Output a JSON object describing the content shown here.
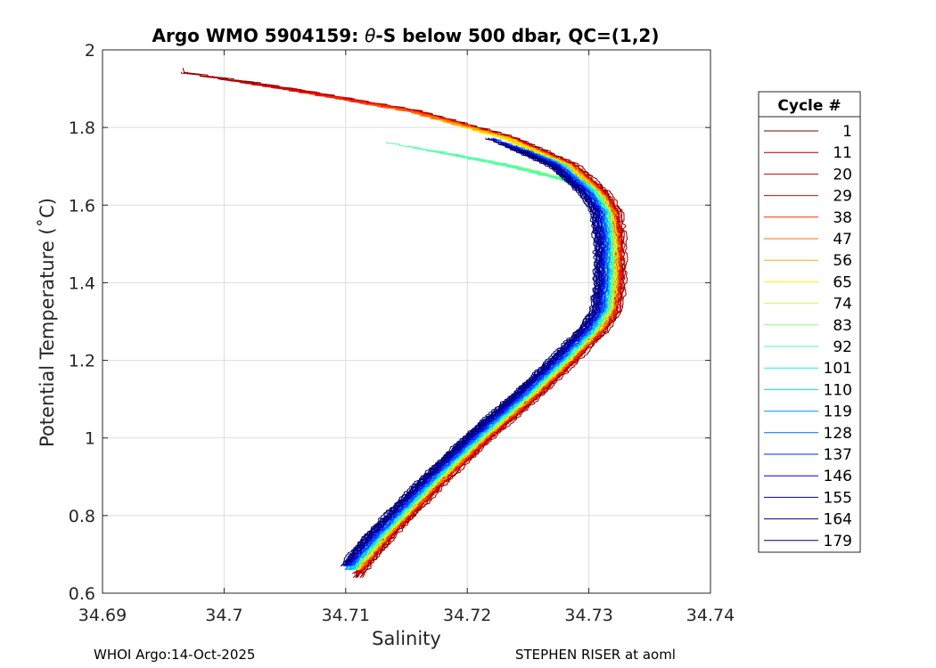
{
  "chart_data": {
    "type": "line",
    "title": {
      "prefix": "Argo WMO 5904159: ",
      "theta": "θ",
      "suffix": "-S below 500 dbar,  QC=(1,2)"
    },
    "xlabel": "Salinity",
    "ylabel": "Potential Temperature (˚C)",
    "xlim": [
      34.69,
      34.74
    ],
    "ylim": [
      0.6,
      2.0
    ],
    "xticks": [
      34.69,
      34.7,
      34.71,
      34.72,
      34.73,
      34.74
    ],
    "xtick_labels": [
      "34.69",
      "34.7",
      "34.71",
      "34.72",
      "34.73",
      "34.74"
    ],
    "yticks": [
      0.6,
      0.8,
      1.0,
      1.2,
      1.4,
      1.6,
      1.8,
      2.0
    ],
    "ytick_labels": [
      "0.6",
      "0.8",
      "1",
      "1.2",
      "1.4",
      "1.6",
      "1.8",
      "2"
    ],
    "grid": true,
    "legend": {
      "title": "Cycle #",
      "placement": "right-outside",
      "entries": [
        {
          "label": "1",
          "color": "#800000"
        },
        {
          "label": "11",
          "color": "#9f0000"
        },
        {
          "label": "20",
          "color": "#c40000"
        },
        {
          "label": "29",
          "color": "#e80000"
        },
        {
          "label": "38",
          "color": "#ff2a00"
        },
        {
          "label": "47",
          "color": "#ff7000"
        },
        {
          "label": "56",
          "color": "#ffb000"
        },
        {
          "label": "65",
          "color": "#fff000"
        },
        {
          "label": "74",
          "color": "#caff34"
        },
        {
          "label": "83",
          "color": "#8bff6b"
        },
        {
          "label": "92",
          "color": "#4effa8"
        },
        {
          "label": "101",
          "color": "#12f5e4"
        },
        {
          "label": "110",
          "color": "#00d4ff"
        },
        {
          "label": "119",
          "color": "#009cff"
        },
        {
          "label": "128",
          "color": "#0062ff"
        },
        {
          "label": "137",
          "color": "#0028ff"
        },
        {
          "label": "146",
          "color": "#0000f0"
        },
        {
          "label": "155",
          "color": "#0000c0"
        },
        {
          "label": "164",
          "color": "#000096"
        },
        {
          "label": "179",
          "color": "#000070"
        }
      ]
    },
    "series_shape": {
      "description": "theta-S profiles, one per cycle; shape shared, salinity offset varies by cycle",
      "points": [
        [
          34.7085,
          0.62
        ],
        [
          34.712,
          0.75
        ],
        [
          34.716,
          0.88
        ],
        [
          34.72,
          1.0
        ],
        [
          34.724,
          1.11
        ],
        [
          34.727,
          1.2
        ],
        [
          34.7295,
          1.28
        ],
        [
          34.7305,
          1.33
        ],
        [
          34.7308,
          1.4
        ],
        [
          34.7308,
          1.5
        ],
        [
          34.7305,
          1.58
        ],
        [
          34.7295,
          1.63
        ],
        [
          34.727,
          1.7
        ],
        [
          34.722,
          1.77
        ],
        [
          34.714,
          1.84
        ],
        [
          34.705,
          1.89
        ],
        [
          34.695,
          1.94
        ]
      ]
    },
    "series": [
      {
        "cycle": "1",
        "s_offset": 0.002,
        "t_min": 0.64,
        "t_max": 1.95,
        "color": "#800000"
      },
      {
        "cycle": "11",
        "s_offset": 0.0018,
        "t_min": 0.64,
        "t_max": 1.94,
        "color": "#9f0000"
      },
      {
        "cycle": "20",
        "s_offset": 0.0017,
        "t_min": 0.65,
        "t_max": 1.93,
        "color": "#c40000"
      },
      {
        "cycle": "29",
        "s_offset": 0.0016,
        "t_min": 0.65,
        "t_max": 1.91,
        "color": "#e80000"
      },
      {
        "cycle": "38",
        "s_offset": 0.0015,
        "t_min": 0.66,
        "t_max": 1.89,
        "color": "#ff2a00"
      },
      {
        "cycle": "47",
        "s_offset": 0.0014,
        "t_min": 0.66,
        "t_max": 1.86,
        "color": "#ff7000"
      },
      {
        "cycle": "56",
        "s_offset": 0.0013,
        "t_min": 0.66,
        "t_max": 1.83,
        "color": "#ffb000"
      },
      {
        "cycle": "65",
        "s_offset": 0.0012,
        "t_min": 0.66,
        "t_max": 1.8,
        "color": "#fff000"
      },
      {
        "cycle": "74",
        "s_offset": 0.0011,
        "t_min": 0.66,
        "t_max": 1.72,
        "color": "#caff34"
      },
      {
        "cycle": "83",
        "s_offset": 0.001,
        "t_min": 0.66,
        "t_max": 1.74,
        "color": "#8bff6b"
      },
      {
        "cycle": "92",
        "s_offset": 0.0009,
        "t_min": 0.66,
        "t_max": 1.76,
        "color": "#4effa8"
      },
      {
        "cycle": "101",
        "s_offset": 0.0008,
        "t_min": 0.66,
        "t_max": 1.75,
        "color": "#12f5e4"
      },
      {
        "cycle": "110",
        "s_offset": 0.0007,
        "t_min": 0.66,
        "t_max": 1.76,
        "color": "#00d4ff"
      },
      {
        "cycle": "119",
        "s_offset": 0.0006,
        "t_min": 0.66,
        "t_max": 1.77,
        "color": "#009cff"
      },
      {
        "cycle": "128",
        "s_offset": 0.0005,
        "t_min": 0.67,
        "t_max": 1.77,
        "color": "#0062ff"
      },
      {
        "cycle": "137",
        "s_offset": 0.0004,
        "t_min": 0.67,
        "t_max": 1.77,
        "color": "#0028ff"
      },
      {
        "cycle": "146",
        "s_offset": 0.0002,
        "t_min": 0.67,
        "t_max": 1.77,
        "color": "#0000f0"
      },
      {
        "cycle": "155",
        "s_offset": 0.0001,
        "t_min": 0.67,
        "t_max": 1.77,
        "color": "#0000c0"
      },
      {
        "cycle": "164",
        "s_offset": 0.0,
        "t_min": 0.67,
        "t_max": 1.77,
        "color": "#000096"
      },
      {
        "cycle": "179",
        "s_offset": -0.0001,
        "t_min": 0.68,
        "t_max": 1.77,
        "color": "#000070"
      }
    ]
  },
  "footer": {
    "left": "WHOI Argo:14-Oct-2025",
    "right": "STEPHEN RISER at aoml"
  }
}
